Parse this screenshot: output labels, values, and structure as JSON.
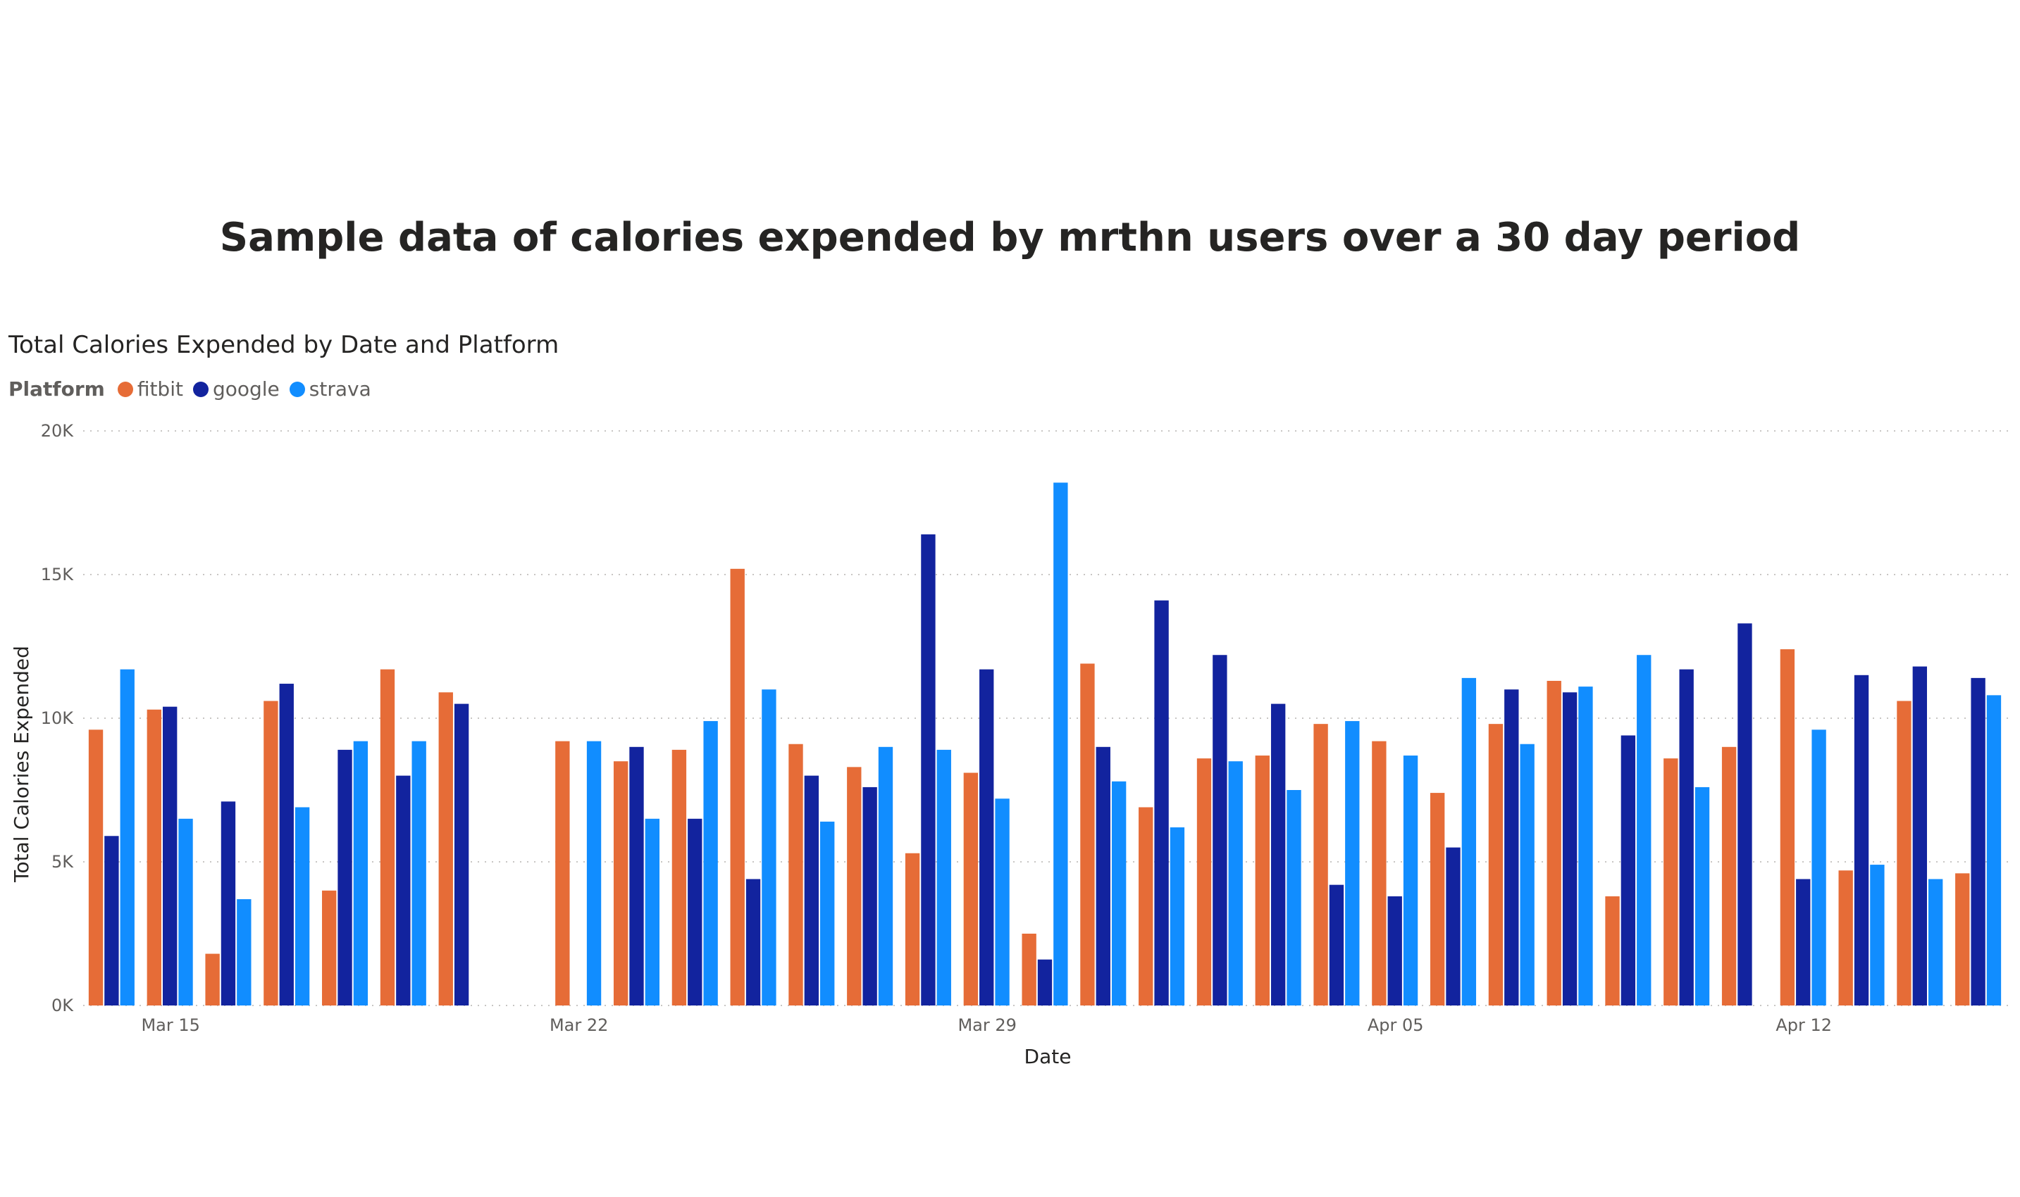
{
  "page": {
    "title": "Sample data of calories expended by mrthn users over a 30 day period"
  },
  "chart_data": {
    "type": "bar",
    "title": "Total Calories Expended by Date and Platform",
    "legend": {
      "title": "Platform",
      "position": "top-left"
    },
    "xlabel": "Date",
    "ylabel": "Total Calories Expended",
    "ylim": [
      0,
      20000
    ],
    "yticks": [
      {
        "value": 0,
        "label": "0K"
      },
      {
        "value": 5000,
        "label": "5K"
      },
      {
        "value": 10000,
        "label": "10K"
      },
      {
        "value": 15000,
        "label": "15K"
      },
      {
        "value": 20000,
        "label": "20K"
      }
    ],
    "grid": "horizontal-dotted",
    "categories": [
      "2020-03-14",
      "2020-03-15",
      "2020-03-16",
      "2020-03-17",
      "2020-03-18",
      "2020-03-19",
      "2020-03-20",
      "2020-03-21",
      "2020-03-22",
      "2020-03-23",
      "2020-03-24",
      "2020-03-25",
      "2020-03-26",
      "2020-03-27",
      "2020-03-28",
      "2020-03-29",
      "2020-03-30",
      "2020-03-31",
      "2020-04-01",
      "2020-04-02",
      "2020-04-03",
      "2020-04-04",
      "2020-04-05",
      "2020-04-06",
      "2020-04-07",
      "2020-04-08",
      "2020-04-09",
      "2020-04-10",
      "2020-04-11",
      "2020-04-12",
      "2020-04-13",
      "2020-04-14",
      "2020-04-15"
    ],
    "xtick_labels": [
      {
        "category": "2020-03-15",
        "label": "Mar 15"
      },
      {
        "category": "2020-03-22",
        "label": "Mar 22"
      },
      {
        "category": "2020-03-29",
        "label": "Mar 29"
      },
      {
        "category": "2020-04-05",
        "label": "Apr 05"
      },
      {
        "category": "2020-04-12",
        "label": "Apr 12"
      }
    ],
    "series": [
      {
        "name": "fitbit",
        "color": "#e66c37",
        "values": [
          9600,
          10300,
          1800,
          10600,
          4000,
          11700,
          10900,
          null,
          9200,
          8500,
          8900,
          15200,
          9100,
          8300,
          5300,
          8100,
          2500,
          11900,
          6900,
          8600,
          8700,
          9800,
          9200,
          7400,
          9800,
          11300,
          3800,
          8600,
          9000,
          12400,
          4700,
          10600,
          4600
        ]
      },
      {
        "name": "google",
        "color": "#12239e",
        "values": [
          5900,
          10400,
          7100,
          11200,
          8900,
          8000,
          10500,
          null,
          null,
          9000,
          6500,
          4400,
          8000,
          7600,
          16400,
          11700,
          1600,
          9000,
          14100,
          12200,
          10500,
          4200,
          3800,
          5500,
          11000,
          10900,
          9400,
          11700,
          13300,
          4400,
          11500,
          11800,
          11400
        ]
      },
      {
        "name": "strava",
        "color": "#118dff",
        "values": [
          11700,
          6500,
          3700,
          6900,
          9200,
          9200,
          null,
          null,
          9200,
          6500,
          9900,
          11000,
          6400,
          9000,
          8900,
          7200,
          18200,
          7800,
          6200,
          8500,
          7500,
          9900,
          8700,
          11400,
          9100,
          11100,
          12200,
          7600,
          null,
          9600,
          4900,
          4400,
          10800
        ]
      }
    ]
  }
}
